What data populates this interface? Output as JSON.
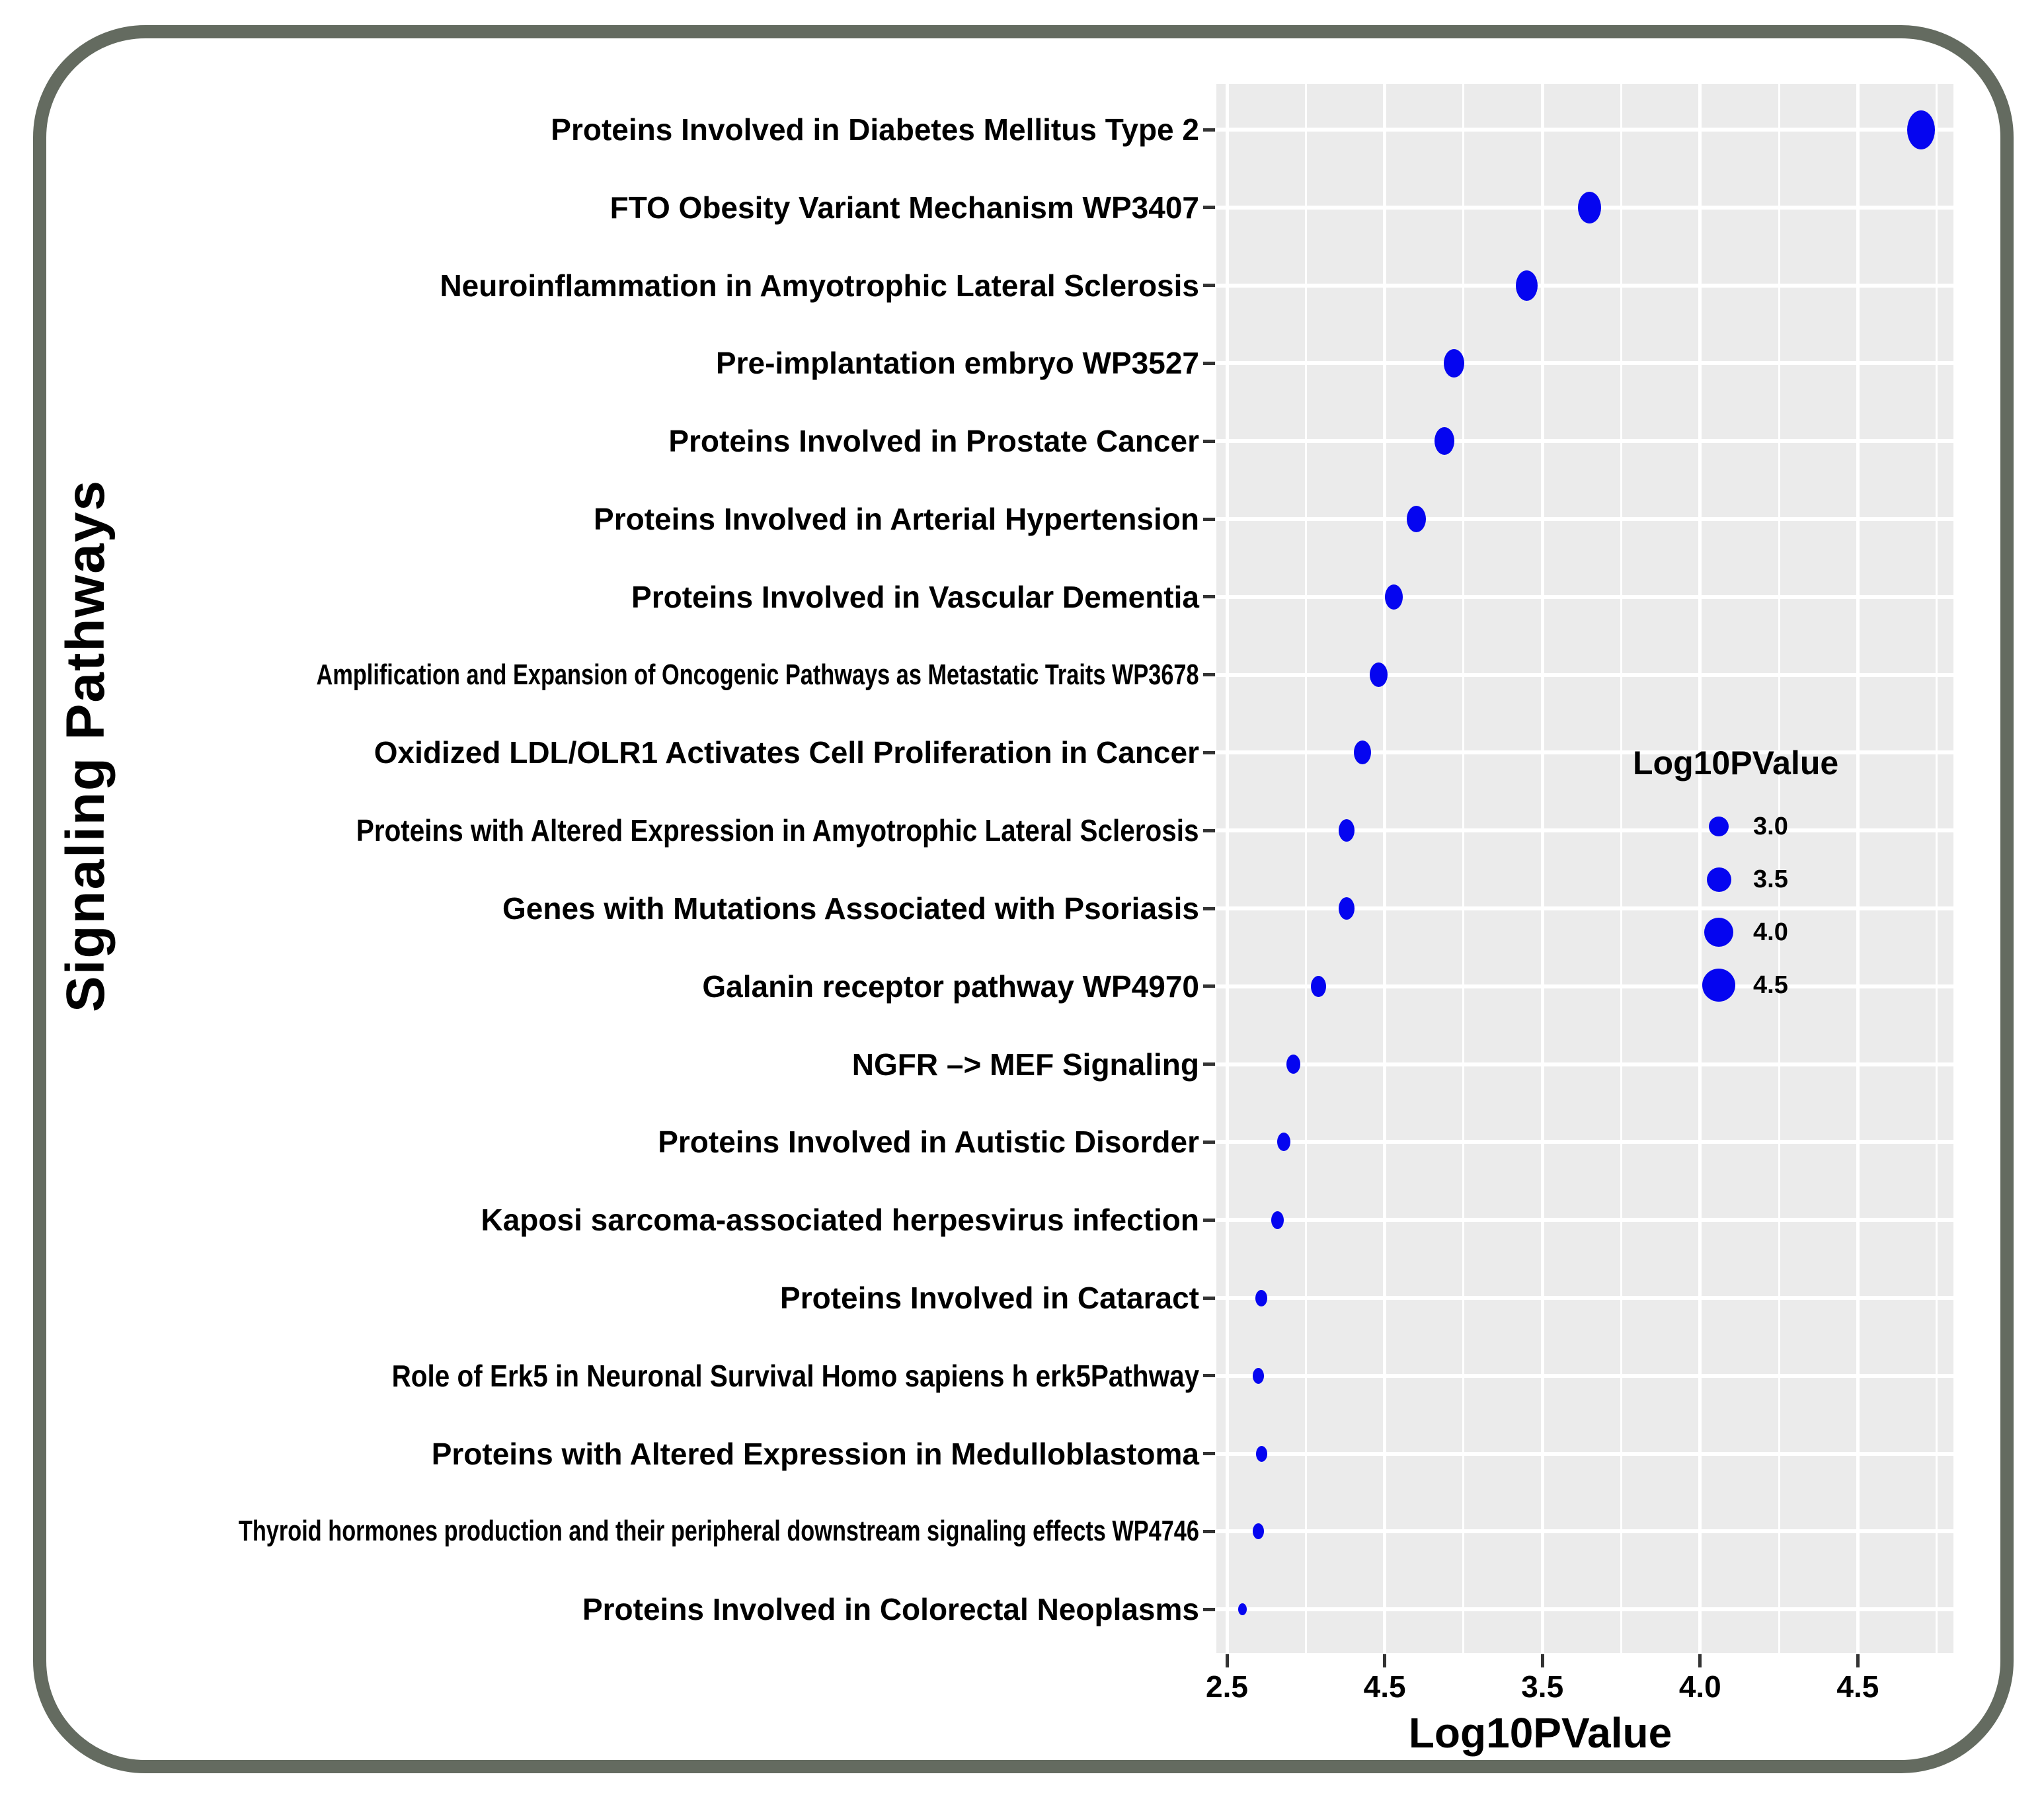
{
  "chart_data": {
    "type": "scatter",
    "title": "",
    "xlabel": "Log10PValue",
    "ylabel": "Signaling Pathways",
    "x_tick_labels": [
      "2.5",
      "4.5",
      "3.5",
      "4.0",
      "4.5"
    ],
    "x_axis_note": "tick labels as printed on the image",
    "grid": "on",
    "panel_bg": "#EBEBEB",
    "dot_color": "#0505F0",
    "frame_color": "#646B60",
    "size_legend": {
      "title": "Log10PValue",
      "entries": [
        {
          "label": "3.0",
          "d": 30
        },
        {
          "label": "3.5",
          "d": 37
        },
        {
          "label": "4.0",
          "d": 44
        },
        {
          "label": "4.5",
          "d": 50
        }
      ]
    },
    "points": [
      {
        "label": "Proteins Involved in Diabetes Mellitus Type 2",
        "log10p": 4.7,
        "w": 42,
        "h": 59,
        "condense": 0
      },
      {
        "label": "FTO Obesity Variant Mechanism WP3407",
        "log10p": 3.65,
        "w": 35,
        "h": 48,
        "condense": 0
      },
      {
        "label": "Neuroinflammation in Amyotrophic Lateral Sclerosis",
        "log10p": 3.45,
        "w": 33,
        "h": 46,
        "condense": 0
      },
      {
        "label": "Pre-implantation embryo WP3527",
        "log10p": 3.22,
        "w": 31,
        "h": 43,
        "condense": 0
      },
      {
        "label": "Proteins Involved in Prostate Cancer",
        "log10p": 3.19,
        "w": 30,
        "h": 42,
        "condense": 0
      },
      {
        "label": "Proteins Involved in Arterial Hypertension",
        "log10p": 3.1,
        "w": 29,
        "h": 40,
        "condense": 0
      },
      {
        "label": "Proteins Involved in Vascular Dementia",
        "log10p": 3.03,
        "w": 27,
        "h": 38,
        "condense": 0
      },
      {
        "label": "Amplification and Expansion of Oncogenic Pathways as Metastatic Traits WP3678",
        "log10p": 2.98,
        "w": 27,
        "h": 37,
        "condense": 2
      },
      {
        "label": "Oxidized LDL/OLR1 Activates Cell Proliferation in Cancer",
        "log10p": 2.93,
        "w": 26,
        "h": 36,
        "condense": 0
      },
      {
        "label": "Proteins with Altered Expression in Amyotrophic Lateral Sclerosis",
        "log10p": 2.88,
        "w": 24,
        "h": 34,
        "condense": 1
      },
      {
        "label": "Genes with Mutations Associated with Psoriasis",
        "log10p": 2.88,
        "w": 24,
        "h": 34,
        "condense": 0
      },
      {
        "label": "Galanin receptor pathway WP4970",
        "log10p": 2.79,
        "w": 23,
        "h": 32,
        "condense": 0
      },
      {
        "label": "NGFR –> MEF Signaling",
        "log10p": 2.71,
        "w": 21,
        "h": 29,
        "condense": 0
      },
      {
        "label": "Proteins Involved in Autistic Disorder",
        "log10p": 2.68,
        "w": 20,
        "h": 28,
        "condense": 0
      },
      {
        "label": "Kaposi sarcoma-associated herpesvirus infection",
        "log10p": 2.66,
        "w": 19,
        "h": 27,
        "condense": 0
      },
      {
        "label": "Proteins Involved in Cataract",
        "log10p": 2.61,
        "w": 18,
        "h": 25,
        "condense": 0
      },
      {
        "label": "Role of Erk5 in Neuronal Survival Homo sapiens h erk5Pathway",
        "log10p": 2.6,
        "w": 17,
        "h": 24,
        "condense": 1
      },
      {
        "label": "Proteins with Altered Expression in Medulloblastoma",
        "log10p": 2.61,
        "w": 17,
        "h": 24,
        "condense": 0
      },
      {
        "label": "Thyroid hormones production and their peripheral downstream signaling effects WP4746",
        "log10p": 2.6,
        "w": 17,
        "h": 24,
        "condense": 2
      },
      {
        "label": "Proteins Involved in Colorectal Neoplasms",
        "log10p": 2.55,
        "w": 13,
        "h": 18,
        "condense": 0
      }
    ]
  }
}
